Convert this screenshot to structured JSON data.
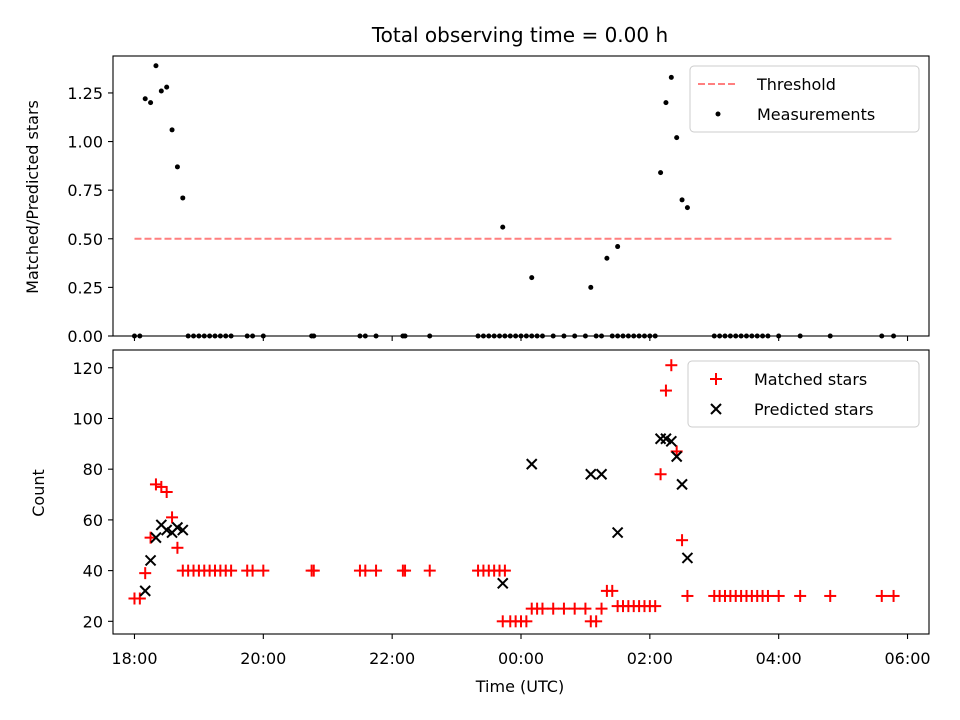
{
  "chart_data": [
    {
      "type": "scatter",
      "title": "Total observing time = 0.00 h",
      "xlabel": "",
      "ylabel": "Matched/Predicted stars",
      "xlim": [
        "17:40",
        "06:20"
      ],
      "ylim": [
        0,
        1.44
      ],
      "yticks": [
        "0.00",
        "0.25",
        "0.50",
        "0.75",
        "1.00",
        "1.25"
      ],
      "xticks": [
        "18:00",
        "20:00",
        "22:00",
        "00:00",
        "02:00",
        "04:00",
        "06:00"
      ],
      "show_xtick_labels": false,
      "legend": {
        "placement": "top-right",
        "entries": [
          "Threshold",
          "Measurements"
        ]
      },
      "threshold": {
        "name": "Threshold",
        "x": [
          "18:00",
          "05:45"
        ],
        "y": 0.5,
        "color": "#ff7f7f",
        "style": "dashed"
      },
      "series": [
        {
          "name": "Measurements",
          "color": "#000000",
          "marker": "dot",
          "points": [
            [
              "18:00",
              0
            ],
            [
              "18:05",
              0
            ],
            [
              "18:10",
              1.22
            ],
            [
              "18:15",
              1.2
            ],
            [
              "18:20",
              1.39
            ],
            [
              "18:25",
              1.26
            ],
            [
              "18:30",
              1.28
            ],
            [
              "18:35",
              1.06
            ],
            [
              "18:40",
              0.87
            ],
            [
              "18:45",
              0.71
            ],
            [
              "18:50",
              0
            ],
            [
              "18:55",
              0
            ],
            [
              "19:00",
              0
            ],
            [
              "19:05",
              0
            ],
            [
              "19:10",
              0
            ],
            [
              "19:15",
              0
            ],
            [
              "19:20",
              0
            ],
            [
              "19:25",
              0
            ],
            [
              "19:30",
              0
            ],
            [
              "19:45",
              0
            ],
            [
              "19:50",
              0
            ],
            [
              "20:00",
              0
            ],
            [
              "20:45",
              0
            ],
            [
              "20:47",
              0
            ],
            [
              "21:30",
              0
            ],
            [
              "21:35",
              0
            ],
            [
              "21:45",
              0
            ],
            [
              "22:10",
              0
            ],
            [
              "22:12",
              0
            ],
            [
              "22:35",
              0
            ],
            [
              "23:20",
              0
            ],
            [
              "23:25",
              0
            ],
            [
              "23:30",
              0
            ],
            [
              "23:35",
              0
            ],
            [
              "23:40",
              0
            ],
            [
              "23:45",
              0
            ],
            [
              "23:50",
              0
            ],
            [
              "23:55",
              0
            ],
            [
              "23:43",
              0.56
            ],
            [
              "00:00",
              0
            ],
            [
              "00:05",
              0
            ],
            [
              "00:10",
              0
            ],
            [
              "00:10",
              0.3
            ],
            [
              "00:15",
              0
            ],
            [
              "00:20",
              0
            ],
            [
              "00:30",
              0
            ],
            [
              "00:40",
              0
            ],
            [
              "00:50",
              0
            ],
            [
              "01:00",
              0
            ],
            [
              "01:05",
              0.25
            ],
            [
              "01:10",
              0
            ],
            [
              "01:15",
              0
            ],
            [
              "01:20",
              0.4
            ],
            [
              "01:25",
              0
            ],
            [
              "01:30",
              0
            ],
            [
              "01:30",
              0.46
            ],
            [
              "01:35",
              0
            ],
            [
              "01:40",
              0
            ],
            [
              "01:45",
              0
            ],
            [
              "01:50",
              0
            ],
            [
              "01:55",
              0
            ],
            [
              "02:00",
              0
            ],
            [
              "02:05",
              0
            ],
            [
              "02:10",
              0.84
            ],
            [
              "02:15",
              1.2
            ],
            [
              "02:20",
              1.33
            ],
            [
              "02:25",
              1.02
            ],
            [
              "02:30",
              0.7
            ],
            [
              "02:35",
              0.66
            ],
            [
              "03:00",
              0
            ],
            [
              "03:05",
              0
            ],
            [
              "03:10",
              0
            ],
            [
              "03:15",
              0
            ],
            [
              "03:20",
              0
            ],
            [
              "03:25",
              0
            ],
            [
              "03:30",
              0
            ],
            [
              "03:35",
              0
            ],
            [
              "03:40",
              0
            ],
            [
              "03:45",
              0
            ],
            [
              "03:50",
              0
            ],
            [
              "04:00",
              0
            ],
            [
              "04:20",
              0
            ],
            [
              "04:48",
              0
            ],
            [
              "05:36",
              0
            ],
            [
              "05:47",
              0
            ]
          ]
        }
      ]
    },
    {
      "type": "scatter",
      "title": "",
      "xlabel": "Time (UTC)",
      "ylabel": "Count",
      "xlim": [
        "17:40",
        "06:20"
      ],
      "ylim": [
        15,
        127
      ],
      "yticks": [
        "20",
        "40",
        "60",
        "80",
        "100",
        "120"
      ],
      "xticks": [
        "18:00",
        "20:00",
        "22:00",
        "00:00",
        "02:00",
        "04:00",
        "06:00"
      ],
      "legend": {
        "placement": "top-right",
        "entries": [
          "Matched stars",
          "Predicted stars"
        ]
      },
      "series": [
        {
          "name": "Matched stars",
          "color": "#ff0000",
          "marker": "plus",
          "points": [
            [
              "18:00",
              29
            ],
            [
              "18:05",
              29
            ],
            [
              "18:10",
              39
            ],
            [
              "18:15",
              53
            ],
            [
              "18:20",
              74
            ],
            [
              "18:25",
              73
            ],
            [
              "18:30",
              71
            ],
            [
              "18:35",
              61
            ],
            [
              "18:40",
              49
            ],
            [
              "18:45",
              40
            ],
            [
              "18:50",
              40
            ],
            [
              "18:55",
              40
            ],
            [
              "19:00",
              40
            ],
            [
              "19:05",
              40
            ],
            [
              "19:10",
              40
            ],
            [
              "19:15",
              40
            ],
            [
              "19:20",
              40
            ],
            [
              "19:25",
              40
            ],
            [
              "19:30",
              40
            ],
            [
              "19:45",
              40
            ],
            [
              "19:50",
              40
            ],
            [
              "20:00",
              40
            ],
            [
              "20:45",
              40
            ],
            [
              "20:47",
              40
            ],
            [
              "21:30",
              40
            ],
            [
              "21:35",
              40
            ],
            [
              "21:45",
              40
            ],
            [
              "22:10",
              40
            ],
            [
              "22:12",
              40
            ],
            [
              "22:35",
              40
            ],
            [
              "23:20",
              40
            ],
            [
              "23:25",
              40
            ],
            [
              "23:30",
              40
            ],
            [
              "23:35",
              40
            ],
            [
              "23:40",
              40
            ],
            [
              "23:45",
              40
            ],
            [
              "23:43",
              20
            ],
            [
              "23:50",
              20
            ],
            [
              "23:55",
              20
            ],
            [
              "00:00",
              20
            ],
            [
              "00:05",
              20
            ],
            [
              "00:10",
              25
            ],
            [
              "00:15",
              25
            ],
            [
              "00:20",
              25
            ],
            [
              "00:30",
              25
            ],
            [
              "00:40",
              25
            ],
            [
              "00:50",
              25
            ],
            [
              "01:00",
              25
            ],
            [
              "01:05",
              20
            ],
            [
              "01:10",
              20
            ],
            [
              "01:15",
              25
            ],
            [
              "01:20",
              32
            ],
            [
              "01:25",
              32
            ],
            [
              "01:30",
              26
            ],
            [
              "01:35",
              26
            ],
            [
              "01:40",
              26
            ],
            [
              "01:45",
              26
            ],
            [
              "01:50",
              26
            ],
            [
              "01:55",
              26
            ],
            [
              "02:00",
              26
            ],
            [
              "02:05",
              26
            ],
            [
              "02:10",
              78
            ],
            [
              "02:15",
              111
            ],
            [
              "02:20",
              121
            ],
            [
              "02:25",
              87
            ],
            [
              "02:30",
              52
            ],
            [
              "02:35",
              30
            ],
            [
              "03:00",
              30
            ],
            [
              "03:05",
              30
            ],
            [
              "03:10",
              30
            ],
            [
              "03:15",
              30
            ],
            [
              "03:20",
              30
            ],
            [
              "03:25",
              30
            ],
            [
              "03:30",
              30
            ],
            [
              "03:35",
              30
            ],
            [
              "03:40",
              30
            ],
            [
              "03:45",
              30
            ],
            [
              "03:50",
              30
            ],
            [
              "04:00",
              30
            ],
            [
              "04:20",
              30
            ],
            [
              "04:48",
              30
            ],
            [
              "05:36",
              30
            ],
            [
              "05:47",
              30
            ]
          ]
        },
        {
          "name": "Predicted stars",
          "color": "#000000",
          "marker": "x",
          "points": [
            [
              "18:10",
              32
            ],
            [
              "18:15",
              44
            ],
            [
              "18:20",
              53
            ],
            [
              "18:25",
              58
            ],
            [
              "18:30",
              56
            ],
            [
              "18:35",
              55
            ],
            [
              "18:40",
              57
            ],
            [
              "18:45",
              56
            ],
            [
              "23:43",
              35
            ],
            [
              "00:10",
              82
            ],
            [
              "01:05",
              78
            ],
            [
              "01:15",
              78
            ],
            [
              "01:30",
              55
            ],
            [
              "02:10",
              92
            ],
            [
              "02:15",
              92
            ],
            [
              "02:20",
              91
            ],
            [
              "02:25",
              85
            ],
            [
              "02:30",
              74
            ],
            [
              "02:35",
              45
            ]
          ]
        }
      ]
    }
  ]
}
